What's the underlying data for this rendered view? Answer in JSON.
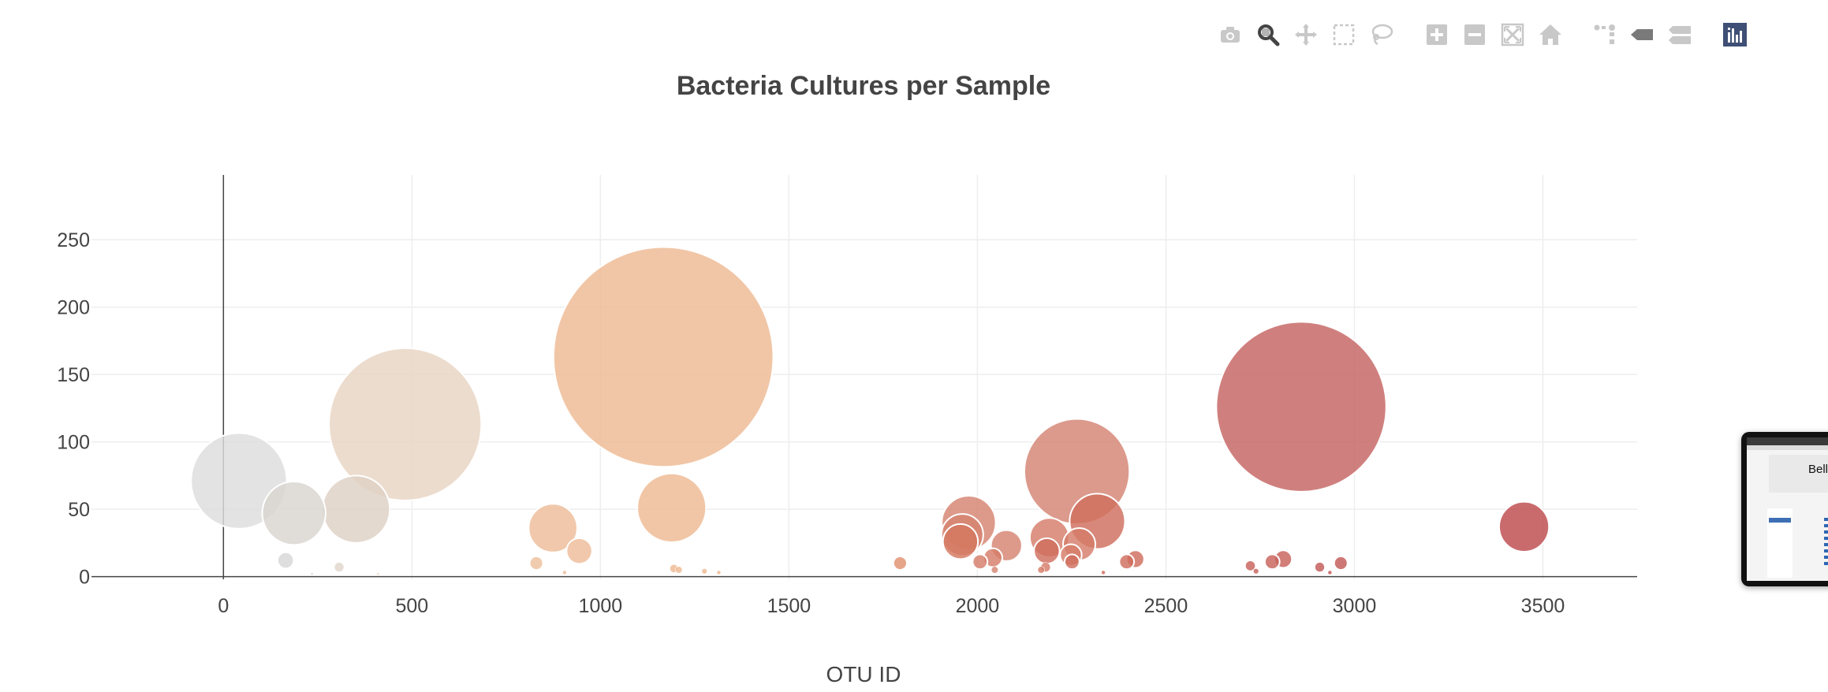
{
  "modebar": {
    "buttons": [
      {
        "name": "camera-icon",
        "label": "Download plot as a png"
      },
      {
        "name": "zoom-icon",
        "label": "Zoom",
        "active": true
      },
      {
        "name": "pan-icon",
        "label": "Pan"
      },
      {
        "name": "box-select-icon",
        "label": "Box Select"
      },
      {
        "name": "lasso-select-icon",
        "label": "Lasso Select"
      },
      {
        "name": "zoom-in-icon",
        "label": "Zoom in"
      },
      {
        "name": "zoom-out-icon",
        "label": "Zoom out"
      },
      {
        "name": "autoscale-icon",
        "label": "Autoscale"
      },
      {
        "name": "reset-axes-icon",
        "label": "Reset axes"
      },
      {
        "name": "spike-lines-icon",
        "label": "Toggle Spike Lines"
      },
      {
        "name": "hover-closest-icon",
        "label": "Show closest data on hover"
      },
      {
        "name": "hover-compare-icon",
        "label": "Compare data on hover"
      },
      {
        "name": "plotly-logo-icon",
        "label": "Produced with Plotly"
      }
    ],
    "active_color": "#444444",
    "inactive_color": "#c8c8c8",
    "logo_color": "#3f4f75"
  },
  "chart_data": {
    "type": "scatter",
    "title": "Bacteria Cultures per Sample",
    "xlabel": "OTU ID",
    "ylabel": "",
    "xlim": [
      -350,
      3750
    ],
    "ylim": [
      -2,
      298
    ],
    "x_ticks": [
      0,
      500,
      1000,
      1500,
      2000,
      2500,
      3000,
      3500
    ],
    "y_ticks": [
      0,
      50,
      100,
      150,
      200,
      250
    ],
    "grid": true,
    "legend": "none",
    "colorscale": "Earth",
    "marker_size": "proportional to sample value",
    "points": [
      {
        "x": 41,
        "y": 71,
        "color": "#dddddd"
      },
      {
        "x": 187,
        "y": 47,
        "color": "#d9d4ce"
      },
      {
        "x": 352,
        "y": 50,
        "color": "#ded1c4"
      },
      {
        "x": 482,
        "y": 113,
        "color": "#e8d4c2"
      },
      {
        "x": 874,
        "y": 36,
        "color": "#eebc98"
      },
      {
        "x": 944,
        "y": 19,
        "color": "#eebc98"
      },
      {
        "x": 1167,
        "y": 163,
        "color": "#eeb993"
      },
      {
        "x": 1189,
        "y": 51,
        "color": "#eeb993"
      },
      {
        "x": 1977,
        "y": 40,
        "color": "#d68470"
      },
      {
        "x": 1960,
        "y": 31,
        "color": "#d68470"
      },
      {
        "x": 1955,
        "y": 26,
        "color": "#d4775f"
      },
      {
        "x": 2077,
        "y": 23,
        "color": "#d68470"
      },
      {
        "x": 2264,
        "y": 78,
        "color": "#d48473"
      },
      {
        "x": 2318,
        "y": 41,
        "color": "#d06e5d"
      },
      {
        "x": 2191,
        "y": 29,
        "color": "#d57d69"
      },
      {
        "x": 2270,
        "y": 24,
        "color": "#d57d69"
      },
      {
        "x": 2184,
        "y": 19,
        "color": "#d06e5d"
      },
      {
        "x": 2859,
        "y": 126,
        "color": "#c46461"
      },
      {
        "x": 3450,
        "y": 37,
        "color": "#bd4a4d"
      },
      {
        "x": 165,
        "y": 12,
        "color": "#d7d7d7"
      },
      {
        "x": 307,
        "y": 7,
        "color": "#e1d6cb"
      },
      {
        "x": 830,
        "y": 10,
        "color": "#eec09c"
      },
      {
        "x": 1795,
        "y": 10,
        "color": "#e0906e"
      },
      {
        "x": 2007,
        "y": 11,
        "color": "#d57d69"
      },
      {
        "x": 2041,
        "y": 14,
        "color": "#d57d69"
      },
      {
        "x": 2248,
        "y": 16,
        "color": "#d57d69"
      },
      {
        "x": 2251,
        "y": 11,
        "color": "#d06e5d"
      },
      {
        "x": 2396,
        "y": 11,
        "color": "#d06e5d"
      },
      {
        "x": 2419,
        "y": 13,
        "color": "#d06e5d"
      },
      {
        "x": 2724,
        "y": 8,
        "color": "#c8625c"
      },
      {
        "x": 2782,
        "y": 11,
        "color": "#c8625c"
      },
      {
        "x": 2811,
        "y": 13,
        "color": "#c8625c"
      },
      {
        "x": 2908,
        "y": 7,
        "color": "#c35a58"
      },
      {
        "x": 2964,
        "y": 10,
        "color": "#c35a58"
      },
      {
        "x": 1195,
        "y": 6,
        "color": "#eeb993"
      },
      {
        "x": 1208,
        "y": 5,
        "color": "#eeb993"
      },
      {
        "x": 1276,
        "y": 4,
        "color": "#eeb993"
      },
      {
        "x": 1314,
        "y": 3,
        "color": "#eeb993"
      },
      {
        "x": 2046,
        "y": 5,
        "color": "#d68470"
      },
      {
        "x": 2169,
        "y": 5,
        "color": "#d57d69"
      },
      {
        "x": 2181,
        "y": 7,
        "color": "#d57d69"
      },
      {
        "x": 2739,
        "y": 4,
        "color": "#c8625c"
      },
      {
        "x": 2935,
        "y": 3,
        "color": "#c35a58"
      },
      {
        "x": 2334,
        "y": 3,
        "color": "#d06e5d"
      },
      {
        "x": 905,
        "y": 3,
        "color": "#eebc98"
      },
      {
        "x": 235,
        "y": 2,
        "color": "#dedbd8"
      },
      {
        "x": 410,
        "y": 2,
        "color": "#e6d8cb"
      }
    ]
  },
  "preview_thumbnail": {
    "heading": "Belly"
  }
}
